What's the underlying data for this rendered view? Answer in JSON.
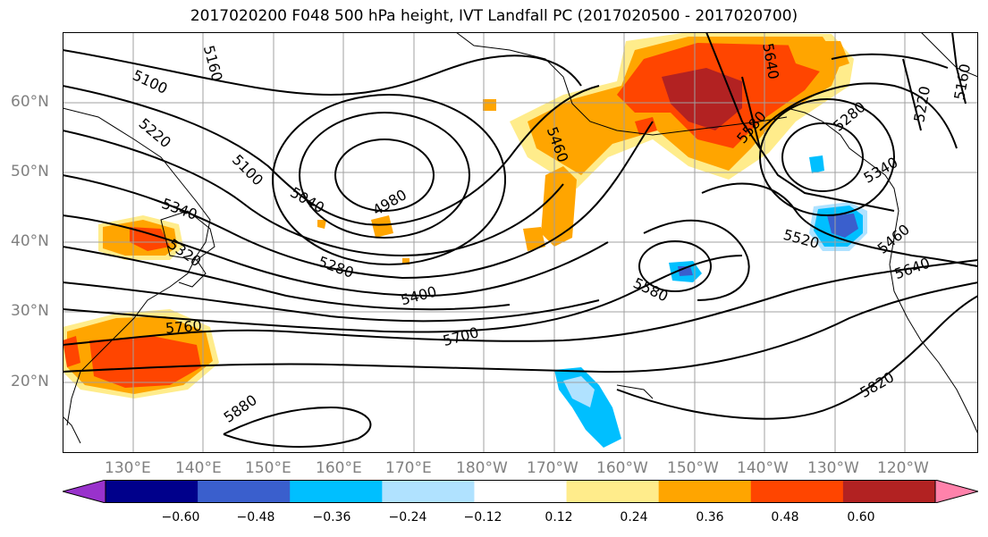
{
  "title": "2017020200 F048 500 hPa height, IVT Landfall PC (2017020500 - 2017020700)",
  "map": {
    "lat_labels": [
      "60°N",
      "50°N",
      "40°N",
      "30°N",
      "20°N"
    ],
    "lon_labels": [
      "130°E",
      "140°E",
      "150°E",
      "160°E",
      "170°E",
      "180°W",
      "170°W",
      "160°W",
      "150°W",
      "140°W",
      "130°W",
      "120°W"
    ],
    "contour_labels": [
      "5100",
      "5160",
      "5220",
      "5100",
      "5340",
      "5320",
      "5040",
      "4980",
      "5280",
      "5400",
      "5460",
      "5640",
      "5580",
      "5580",
      "5700",
      "5760",
      "5880",
      "5820",
      "5520",
      "5460",
      "5640",
      "5280",
      "5340",
      "5220",
      "5160"
    ]
  },
  "colorbar": {
    "ticks": [
      "−0.60",
      "−0.48",
      "−0.36",
      "−0.24",
      "−0.12",
      "0.12",
      "0.24",
      "0.36",
      "0.48",
      "0.60"
    ],
    "colors": [
      "#9932CC",
      "#00008B",
      "#3A5FCD",
      "#00BFFF",
      "#B0E2FF",
      "#FFFFFF",
      "#FFEC8B",
      "#FFA500",
      "#FF4500",
      "#B22222",
      "#FF82AB"
    ]
  }
}
